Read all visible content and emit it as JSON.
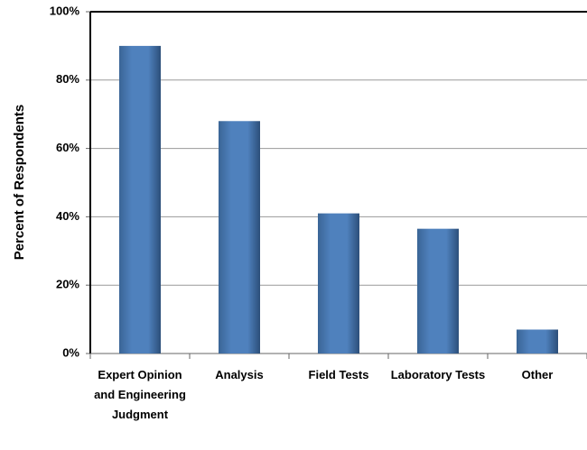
{
  "chart_data": {
    "type": "bar",
    "y_label": "Percent of Respondents",
    "categories": [
      "Expert Opinion and Engineering Judgment",
      "Analysis",
      "Field Tests",
      "Laboratory Tests",
      "Other"
    ],
    "values": [
      90,
      68,
      41,
      36.5,
      7
    ],
    "color": "#4f81bd",
    "ylim": [
      0,
      100
    ],
    "yticks": [
      {
        "value": 0,
        "label": "0%"
      },
      {
        "value": 20,
        "label": "20%"
      },
      {
        "value": 40,
        "label": "40%"
      },
      {
        "value": 60,
        "label": "60%"
      },
      {
        "value": 80,
        "label": "80%"
      },
      {
        "value": 100,
        "label": "100%"
      }
    ],
    "grid": true
  }
}
